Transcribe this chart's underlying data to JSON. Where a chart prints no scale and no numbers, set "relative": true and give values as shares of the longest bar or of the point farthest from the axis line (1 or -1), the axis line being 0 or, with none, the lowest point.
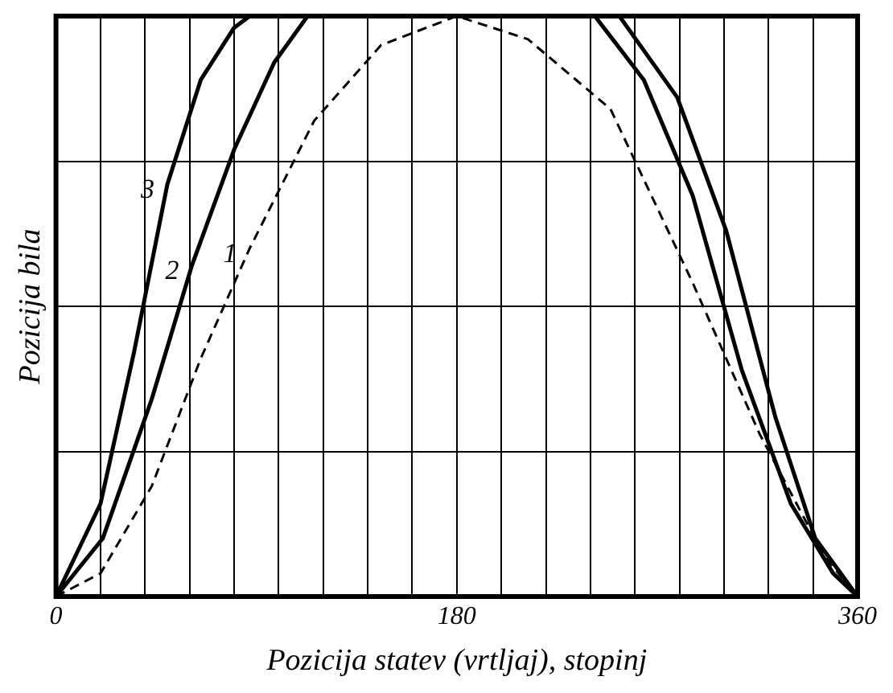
{
  "chart_data": {
    "type": "line",
    "relative": true,
    "xlabel": "Pozicija statev (vrtljaj), stopinj",
    "ylabel": "Pozicija bila",
    "xlim": [
      0,
      360
    ],
    "xticks": [
      0,
      {
        "value": 20,
        "label": null
      },
      {
        "value": 40,
        "label": null
      },
      {
        "value": 60,
        "label": null
      },
      {
        "value": 80,
        "label": null
      },
      {
        "value": 100,
        "label": null
      },
      {
        "value": 120,
        "label": null
      },
      {
        "value": 140,
        "label": null
      },
      {
        "value": 160,
        "label": null
      },
      180,
      {
        "value": 200,
        "label": null
      },
      {
        "value": 220,
        "label": null
      },
      {
        "value": 240,
        "label": null
      },
      {
        "value": 260,
        "label": null
      },
      {
        "value": 280,
        "label": null
      },
      {
        "value": 300,
        "label": null
      },
      {
        "value": 320,
        "label": null
      },
      {
        "value": 340,
        "label": null
      },
      360
    ],
    "grid": true,
    "legend": false,
    "marker": "none",
    "series": [
      {
        "name": "1",
        "color": "#000000",
        "line_style": "dashed",
        "x": [
          0,
          20,
          43,
          65,
          87,
          116,
          146,
          180,
          212,
          249,
          286,
          316,
          345,
          360
        ],
        "values": [
          0,
          0.04,
          0.19,
          0.41,
          0.6,
          0.82,
          0.95,
          1,
          0.96,
          0.84,
          0.54,
          0.28,
          0.07,
          0
        ]
      },
      {
        "name": "2",
        "color": "#000000",
        "line_style": "solid",
        "x": [
          0,
          21,
          43,
          61,
          80,
          98,
          113,
          253,
          279,
          301,
          323,
          341,
          360
        ],
        "values": [
          0,
          0.1,
          0.34,
          0.57,
          0.77,
          0.92,
          1,
          1,
          0.86,
          0.63,
          0.31,
          0.1,
          0
        ]
      },
      {
        "name": "3",
        "color": "#000000",
        "line_style": "solid",
        "x": [
          0,
          20,
          35,
          50,
          65,
          80,
          87,
          242,
          264,
          286,
          308,
          330,
          349,
          360
        ],
        "values": [
          0,
          0.16,
          0.42,
          0.71,
          0.89,
          0.98,
          1,
          1,
          0.89,
          0.69,
          0.39,
          0.16,
          0.04,
          0
        ]
      }
    ]
  }
}
